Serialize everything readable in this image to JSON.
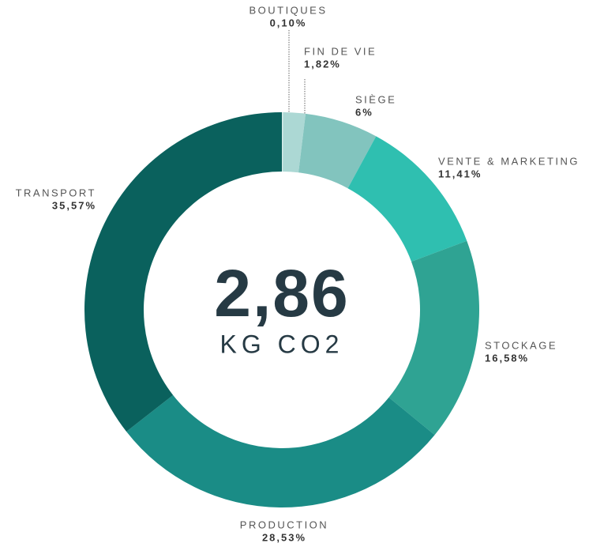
{
  "chart_data": {
    "type": "donut",
    "categories": [
      "BOUTIQUES",
      "FIN DE VIE",
      "SIÈGE",
      "VENTE & MARKETING",
      "STOCKAGE",
      "PRODUCTION",
      "TRANSPORT"
    ],
    "values": [
      0.1,
      1.82,
      6,
      11.41,
      16.58,
      28.53,
      35.57
    ],
    "value_labels": [
      "0,10%",
      "1,82%",
      "6%",
      "11,41%",
      "16,58%",
      "28,53%",
      "35,57%"
    ],
    "colors": [
      "#d6ecea",
      "#acd8d4",
      "#82c4be",
      "#2fbfb0",
      "#2fa393",
      "#1a8c86",
      "#0a615d"
    ],
    "center_value": "2,86",
    "center_unit": "KG CO2"
  }
}
